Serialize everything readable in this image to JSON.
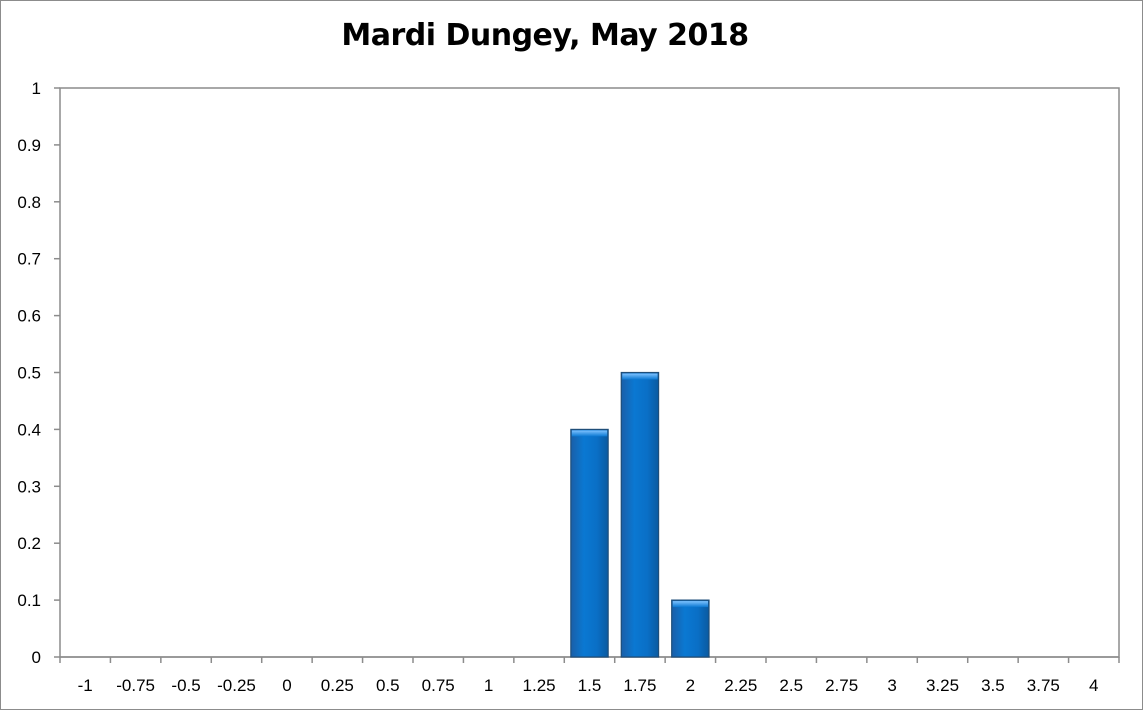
{
  "chart_data": {
    "type": "bar",
    "title": "Mardi Dungey, May 2018",
    "xlabel": "",
    "ylabel": "",
    "categories": [
      "-1",
      "-0.75",
      "-0.5",
      "-0.25",
      "0",
      "0.25",
      "0.5",
      "0.75",
      "1",
      "1.25",
      "1.5",
      "1.75",
      "2",
      "2.25",
      "2.5",
      "2.75",
      "3",
      "3.25",
      "3.5",
      "3.75",
      "4"
    ],
    "values": [
      0,
      0,
      0,
      0,
      0,
      0,
      0,
      0,
      0,
      0,
      0.4,
      0.5,
      0.1,
      0,
      0,
      0,
      0,
      0,
      0,
      0,
      0
    ],
    "ylim": [
      0,
      1
    ],
    "yticks": [
      "0",
      "0.1",
      "0.2",
      "0.3",
      "0.4",
      "0.5",
      "0.6",
      "0.7",
      "0.8",
      "0.9",
      "1"
    ],
    "grid": false,
    "legend": "none",
    "bar_color": "#0070c0",
    "bar_edge_color": "#1f4e79"
  }
}
